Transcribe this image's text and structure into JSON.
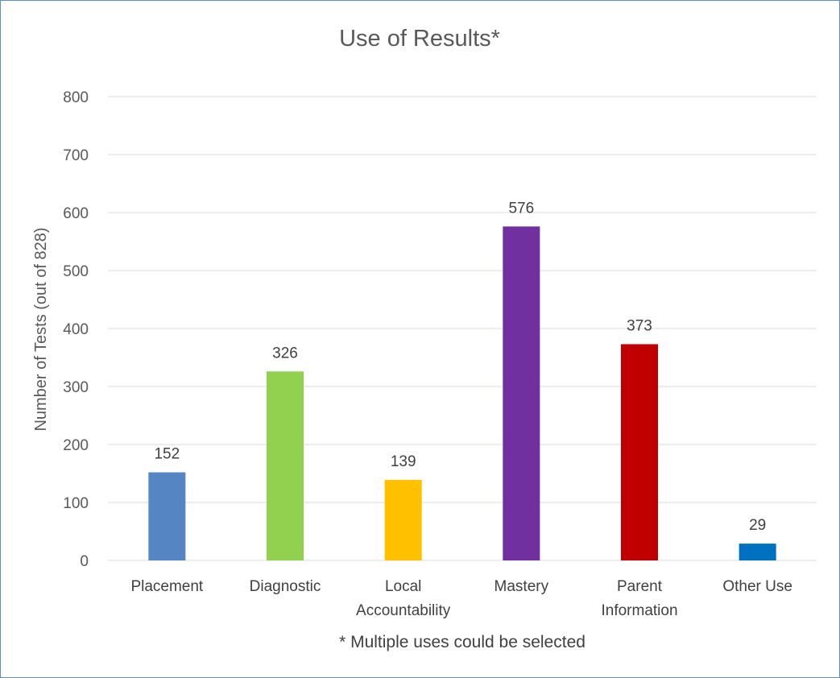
{
  "chart_data": {
    "type": "bar",
    "title": "Use of Results*",
    "ylabel": "Number of Tests (out of 828)",
    "xlabel": "",
    "footnote": "* Multiple uses could be selected",
    "ylim": [
      0,
      800
    ],
    "yticks": [
      0,
      100,
      200,
      300,
      400,
      500,
      600,
      700,
      800
    ],
    "grid": true,
    "legend": "none",
    "categories": [
      [
        "Placement"
      ],
      [
        "Diagnostic"
      ],
      [
        "Local",
        "Accountability"
      ],
      [
        "Mastery"
      ],
      [
        "Parent",
        "Information"
      ],
      [
        "Other Use"
      ]
    ],
    "values": [
      152,
      326,
      139,
      576,
      373,
      29
    ],
    "colors": [
      "#5585c2",
      "#92d050",
      "#ffc000",
      "#7030a0",
      "#c00000",
      "#0070c0"
    ]
  }
}
